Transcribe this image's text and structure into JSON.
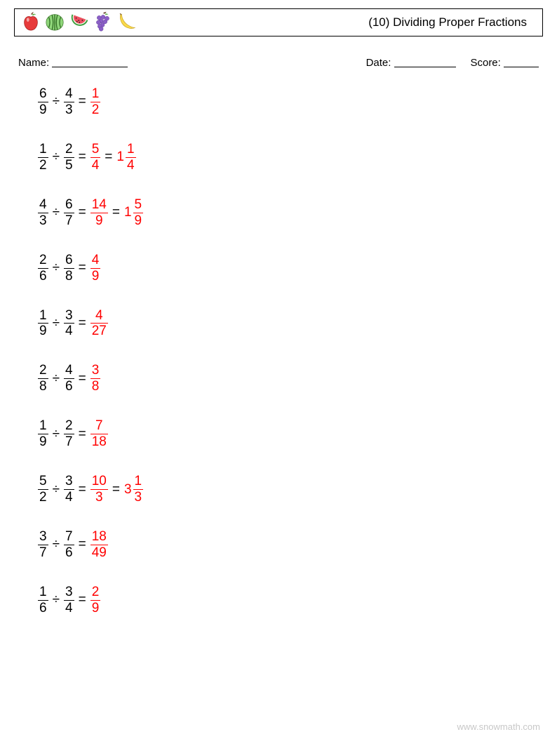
{
  "title": "(10) Dividing Proper Fractions",
  "labels": {
    "name": "Name:",
    "date": "Date:",
    "score": "Score:"
  },
  "blanks": {
    "name_width": 108,
    "date_width": 88,
    "score_width": 50
  },
  "colors": {
    "text": "#000000",
    "answer": "#ff0000",
    "footer": "#c8c8c8",
    "background": "#ffffff"
  },
  "fonts": {
    "title_size": 17,
    "body_size": 15,
    "problem_size": 19,
    "footer_size": 13
  },
  "operator": "÷",
  "equals": "=",
  "problems": [
    {
      "a": {
        "n": "6",
        "d": "9"
      },
      "b": {
        "n": "4",
        "d": "3"
      },
      "answers": [
        {
          "type": "frac",
          "n": "1",
          "d": "2"
        }
      ]
    },
    {
      "a": {
        "n": "1",
        "d": "2"
      },
      "b": {
        "n": "2",
        "d": "5"
      },
      "answers": [
        {
          "type": "frac",
          "n": "5",
          "d": "4"
        },
        {
          "type": "mixed",
          "w": "1",
          "n": "1",
          "d": "4"
        }
      ]
    },
    {
      "a": {
        "n": "4",
        "d": "3"
      },
      "b": {
        "n": "6",
        "d": "7"
      },
      "answers": [
        {
          "type": "frac",
          "n": "14",
          "d": "9"
        },
        {
          "type": "mixed",
          "w": "1",
          "n": "5",
          "d": "9"
        }
      ]
    },
    {
      "a": {
        "n": "2",
        "d": "6"
      },
      "b": {
        "n": "6",
        "d": "8"
      },
      "answers": [
        {
          "type": "frac",
          "n": "4",
          "d": "9"
        }
      ]
    },
    {
      "a": {
        "n": "1",
        "d": "9"
      },
      "b": {
        "n": "3",
        "d": "4"
      },
      "answers": [
        {
          "type": "frac",
          "n": "4",
          "d": "27"
        }
      ]
    },
    {
      "a": {
        "n": "2",
        "d": "8"
      },
      "b": {
        "n": "4",
        "d": "6"
      },
      "answers": [
        {
          "type": "frac",
          "n": "3",
          "d": "8"
        }
      ]
    },
    {
      "a": {
        "n": "1",
        "d": "9"
      },
      "b": {
        "n": "2",
        "d": "7"
      },
      "answers": [
        {
          "type": "frac",
          "n": "7",
          "d": "18"
        }
      ]
    },
    {
      "a": {
        "n": "5",
        "d": "2"
      },
      "b": {
        "n": "3",
        "d": "4"
      },
      "answers": [
        {
          "type": "frac",
          "n": "10",
          "d": "3"
        },
        {
          "type": "mixed",
          "w": "3",
          "n": "1",
          "d": "3"
        }
      ]
    },
    {
      "a": {
        "n": "3",
        "d": "7"
      },
      "b": {
        "n": "7",
        "d": "6"
      },
      "answers": [
        {
          "type": "frac",
          "n": "18",
          "d": "49"
        }
      ]
    },
    {
      "a": {
        "n": "1",
        "d": "6"
      },
      "b": {
        "n": "3",
        "d": "4"
      },
      "answers": [
        {
          "type": "frac",
          "n": "2",
          "d": "9"
        }
      ]
    }
  ],
  "footer": "www.snowmath.com"
}
